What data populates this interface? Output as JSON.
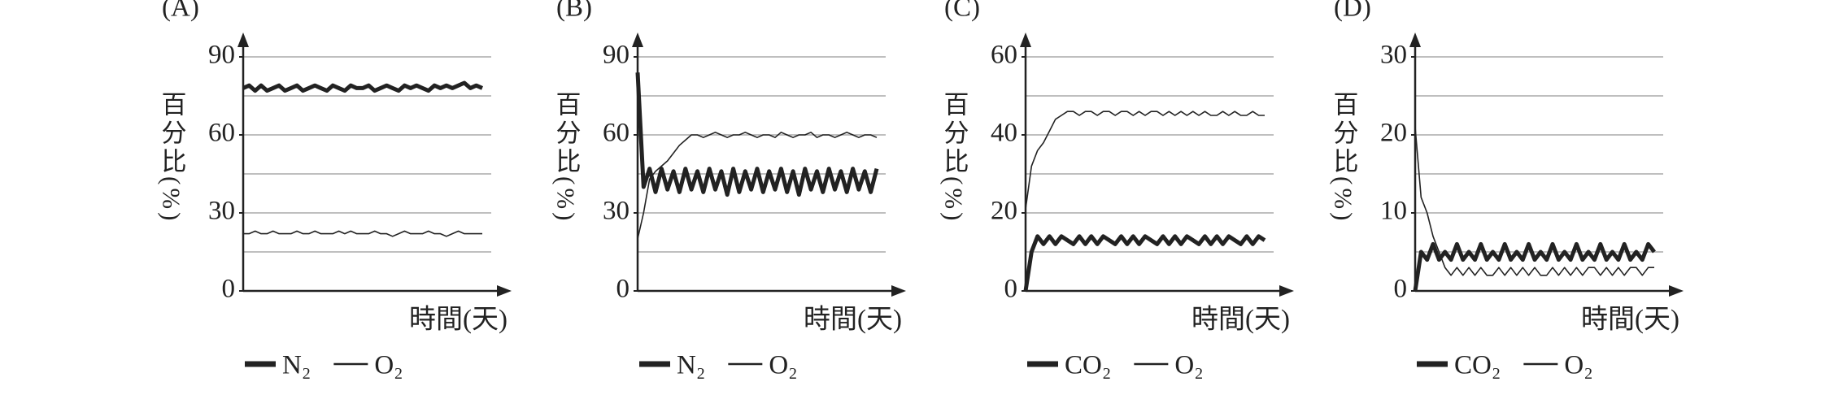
{
  "chart_data": [
    {
      "type": "line",
      "title": "(A)",
      "ylabel": "百分比(%)",
      "xlabel": "時間(天)",
      "ylim": [
        0,
        90
      ],
      "yticks": [
        0,
        30,
        60,
        90
      ],
      "grid_step": 15,
      "xlim": [
        0,
        41.5
      ],
      "series": [
        {
          "name": "N₂",
          "color": "#222222",
          "width": 5,
          "values": [
            78,
            79,
            77,
            79,
            77,
            78,
            79,
            77,
            78,
            79,
            77,
            78,
            79,
            78,
            77,
            79,
            78,
            77,
            79,
            78,
            78,
            79,
            77,
            78,
            79,
            78,
            77,
            79,
            78,
            79,
            78,
            77,
            79,
            78,
            79,
            78,
            79,
            80,
            78,
            79,
            78
          ]
        },
        {
          "name": "O₂",
          "color": "#222222",
          "width": 1.6,
          "values": [
            22,
            22,
            23,
            22,
            22,
            23,
            22,
            22,
            22,
            23,
            22,
            22,
            23,
            22,
            22,
            22,
            23,
            22,
            23,
            22,
            22,
            22,
            23,
            22,
            22,
            21,
            22,
            23,
            22,
            22,
            22,
            23,
            22,
            22,
            21,
            22,
            23,
            22,
            22,
            22,
            22
          ]
        }
      ]
    },
    {
      "type": "line",
      "title": "(B)",
      "ylabel": "百分比(%)",
      "xlabel": "時間(天)",
      "ylim": [
        0,
        90
      ],
      "yticks": [
        0,
        30,
        60,
        90
      ],
      "grid_step": 15,
      "xlim": [
        0,
        41.5
      ],
      "series": [
        {
          "name": "N₂",
          "color": "#222222",
          "width": 5,
          "values": [
            84,
            40,
            47,
            38,
            47,
            39,
            46,
            38,
            47,
            39,
            46,
            38,
            47,
            39,
            46,
            37,
            47,
            38,
            46,
            39,
            47,
            38,
            46,
            39,
            47,
            38,
            46,
            37,
            47,
            39,
            46,
            38,
            47,
            39,
            46,
            38,
            47,
            39,
            46,
            38,
            47
          ]
        },
        {
          "name": "O₂",
          "color": "#222222",
          "width": 1.6,
          "values": [
            20,
            30,
            43,
            46,
            48,
            50,
            53,
            56,
            58,
            60,
            60,
            59,
            60,
            61,
            60,
            59,
            60,
            60,
            61,
            60,
            59,
            60,
            60,
            59,
            61,
            60,
            59,
            60,
            60,
            61,
            59,
            60,
            60,
            59,
            60,
            61,
            60,
            59,
            60,
            60,
            59
          ]
        }
      ]
    },
    {
      "type": "line",
      "title": "(C)",
      "ylabel": "百分比(%)",
      "xlabel": "時間(天)",
      "ylim": [
        0,
        60
      ],
      "yticks": [
        0,
        20,
        40,
        60
      ],
      "grid_step": 10,
      "xlim": [
        0,
        41.5
      ],
      "series": [
        {
          "name": "CO₂",
          "color": "#222222",
          "width": 5,
          "values": [
            0,
            10,
            14,
            12,
            14,
            12,
            14,
            13,
            12,
            14,
            12,
            14,
            12,
            14,
            13,
            12,
            14,
            12,
            14,
            12,
            14,
            13,
            12,
            14,
            12,
            14,
            12,
            14,
            13,
            12,
            14,
            12,
            14,
            12,
            14,
            13,
            12,
            14,
            12,
            14,
            13
          ]
        },
        {
          "name": "O₂",
          "color": "#222222",
          "width": 1.6,
          "values": [
            21,
            32,
            36,
            38,
            41,
            44,
            45,
            46,
            46,
            45,
            46,
            46,
            45,
            46,
            46,
            45,
            46,
            46,
            45,
            46,
            45,
            46,
            46,
            45,
            46,
            45,
            46,
            45,
            46,
            45,
            46,
            45,
            45,
            46,
            45,
            46,
            45,
            45,
            46,
            45,
            45
          ]
        }
      ]
    },
    {
      "type": "line",
      "title": "(D)",
      "ylabel": "百分比(%)",
      "xlabel": "時間(天)",
      "ylim": [
        0,
        30
      ],
      "yticks": [
        0,
        10,
        20,
        30
      ],
      "grid_step": 5,
      "xlim": [
        0,
        41.5
      ],
      "series": [
        {
          "name": "CO₂",
          "color": "#222222",
          "width": 5,
          "values": [
            0,
            5,
            4,
            6,
            4,
            5,
            4,
            6,
            4,
            5,
            4,
            6,
            4,
            5,
            4,
            6,
            4,
            5,
            4,
            6,
            4,
            5,
            4,
            6,
            4,
            5,
            4,
            6,
            4,
            5,
            4,
            6,
            4,
            5,
            4,
            6,
            4,
            5,
            4,
            6,
            5
          ]
        },
        {
          "name": "O₂",
          "color": "#222222",
          "width": 1.6,
          "values": [
            21,
            12,
            10,
            7,
            5,
            3,
            2,
            3,
            2,
            3,
            2,
            3,
            2,
            2,
            3,
            2,
            3,
            2,
            3,
            2,
            3,
            2,
            2,
            3,
            2,
            3,
            2,
            3,
            2,
            3,
            3,
            2,
            3,
            2,
            3,
            2,
            3,
            3,
            2,
            3,
            3
          ]
        }
      ]
    }
  ]
}
